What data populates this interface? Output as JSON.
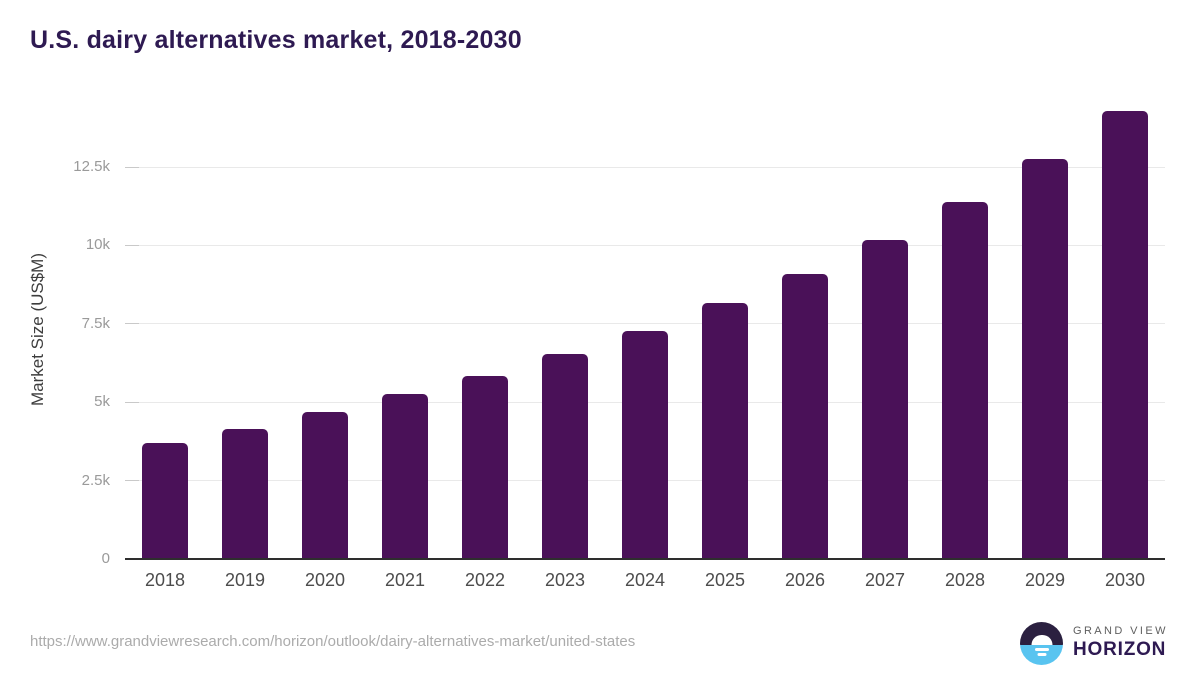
{
  "title": "U.S. dairy alternatives market, 2018-2030",
  "chart_data": {
    "type": "bar",
    "title": "U.S. dairy alternatives market, 2018-2030",
    "categories": [
      "2018",
      "2019",
      "2020",
      "2021",
      "2022",
      "2023",
      "2024",
      "2025",
      "2026",
      "2027",
      "2028",
      "2029",
      "2030"
    ],
    "values": [
      3700,
      4150,
      4700,
      5250,
      5850,
      6530,
      7260,
      8150,
      9100,
      10180,
      11400,
      12750,
      14300
    ],
    "xlabel": "",
    "ylabel": "Market Size (US$M)",
    "ylim": [
      0,
      14650
    ],
    "yticks": [
      {
        "value": 0,
        "label": "0"
      },
      {
        "value": 2500,
        "label": "2.5k"
      },
      {
        "value": 5000,
        "label": "5k"
      },
      {
        "value": 7500,
        "label": "7.5k"
      },
      {
        "value": 10000,
        "label": "10k"
      },
      {
        "value": 12500,
        "label": "12.5k"
      }
    ],
    "grid": "horizontal",
    "legend": "none",
    "bar_color": "#4a1158"
  },
  "footer": {
    "source_url": "https://www.grandviewresearch.com/horizon/outlook/dairy-alternatives-market/united-states"
  },
  "logo": {
    "top_text": "GRAND VIEW",
    "bottom_text": "HORIZON"
  },
  "colors": {
    "title": "#2e1a52",
    "bar": "#4a1158",
    "axis_line": "#2e2e2e",
    "gridline": "#e9e9e9",
    "y_tick_text": "#9a9a9a",
    "x_tick_text": "#4c4c4c",
    "url_text": "#ababab",
    "logo_dark": "#2b2040",
    "logo_blue": "#59c4f0"
  }
}
